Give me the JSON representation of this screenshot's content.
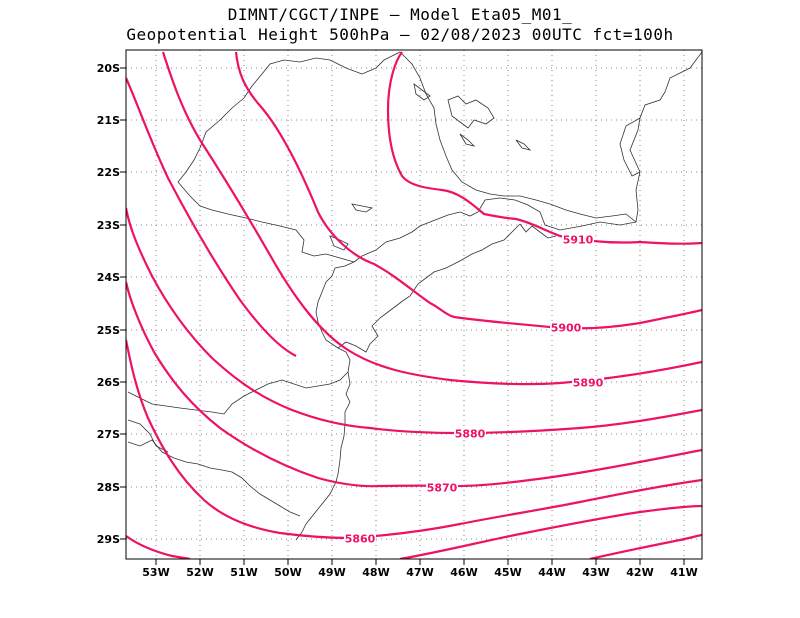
{
  "header": {
    "line1": "DIMNT/CGCT/INPE –  Model Eta05_M01_",
    "line2": "Geopotential Height 500hPa –  02/08/2023 00UTC fct=100h"
  },
  "colors": {
    "contour": "#ee1166",
    "coast": "#333333",
    "grid": "#888888",
    "frame": "#000000"
  },
  "axes": {
    "y_ticks": [
      "20S",
      "21S",
      "22S",
      "23S",
      "24S",
      "25S",
      "26S",
      "27S",
      "28S",
      "29S"
    ],
    "x_ticks": [
      "53W",
      "52W",
      "51W",
      "50W",
      "49W",
      "48W",
      "47W",
      "46W",
      "45W",
      "44W",
      "43W",
      "42W",
      "41W"
    ]
  },
  "contours": [
    {
      "value": "5910",
      "label": "5910"
    },
    {
      "value": "5900",
      "label": "5900"
    },
    {
      "value": "5890",
      "label": "5890"
    },
    {
      "value": "5880",
      "label": "5880"
    },
    {
      "value": "5870",
      "label": "5870"
    },
    {
      "value": "5860",
      "label": "5860"
    }
  ]
}
